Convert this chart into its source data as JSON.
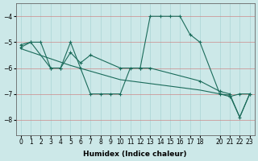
{
  "xlabel": "Humidex (Indice chaleur)",
  "bg_color": "#cce8e8",
  "grid_color": "#aad4d4",
  "line_color": "#1a6b5a",
  "xlim": [
    -0.5,
    23.5
  ],
  "ylim": [
    -8.6,
    -3.5
  ],
  "yticks": [
    -8,
    -7,
    -6,
    -5,
    -4
  ],
  "xticks": [
    0,
    1,
    2,
    3,
    4,
    5,
    6,
    7,
    8,
    9,
    10,
    11,
    12,
    13,
    14,
    15,
    16,
    17,
    18,
    20,
    21,
    22,
    23
  ],
  "line1_x": [
    0,
    1,
    2,
    3,
    4,
    5,
    6,
    7,
    8,
    9,
    10,
    11,
    12,
    13,
    14,
    15,
    16,
    17,
    18,
    20,
    21,
    22,
    23
  ],
  "line1_y": [
    -5.1,
    -5.0,
    -5.0,
    -6.0,
    -6.0,
    -5.0,
    -6.0,
    -7.0,
    -7.0,
    -7.0,
    -7.0,
    -6.0,
    -6.0,
    -4.0,
    -4.0,
    -4.0,
    -4.0,
    -4.7,
    -5.0,
    -7.0,
    -7.1,
    -7.0,
    -7.0
  ],
  "line2_x": [
    0,
    1,
    3,
    4,
    5,
    6,
    7,
    10,
    12,
    13,
    18,
    20,
    21,
    22,
    23
  ],
  "line2_y": [
    -5.2,
    -5.0,
    -6.0,
    -6.0,
    -5.4,
    -5.8,
    -5.5,
    -6.0,
    -6.0,
    -6.0,
    -6.5,
    -6.9,
    -7.0,
    -7.9,
    -7.0
  ],
  "line3_x": [
    0,
    5,
    10,
    13,
    18,
    20,
    21,
    22,
    23
  ],
  "line3_y": [
    -5.25,
    -5.9,
    -6.45,
    -6.6,
    -6.85,
    -7.0,
    -7.05,
    -7.9,
    -7.0
  ]
}
